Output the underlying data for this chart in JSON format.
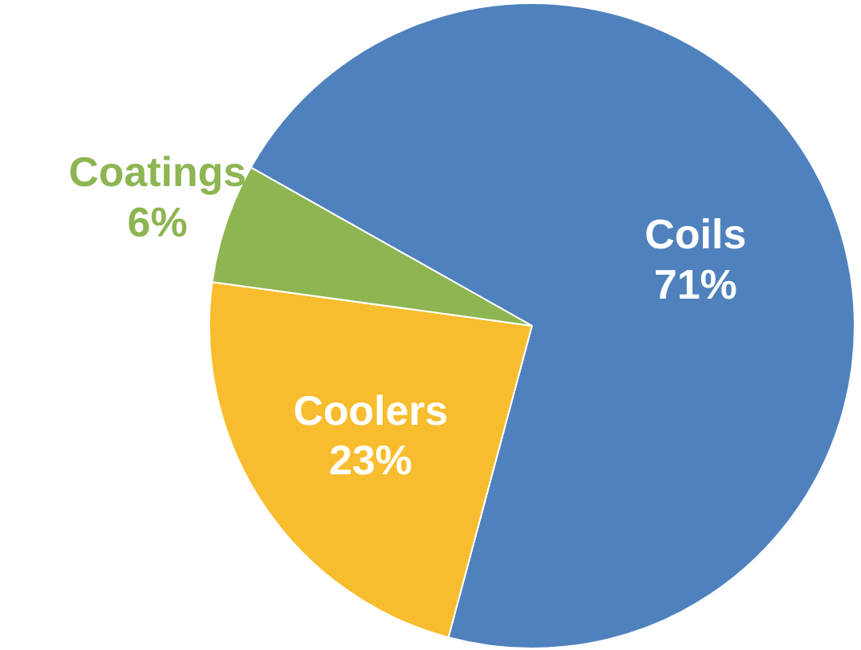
{
  "chart_data": {
    "type": "pie",
    "categories": [
      "Coils",
      "Coolers",
      "Coatings"
    ],
    "values": [
      71,
      23,
      6
    ],
    "value_labels": [
      "71%",
      "23%",
      "6%"
    ],
    "colors": [
      "#4f81bd",
      "#f7bd2e",
      "#8db552"
    ]
  }
}
